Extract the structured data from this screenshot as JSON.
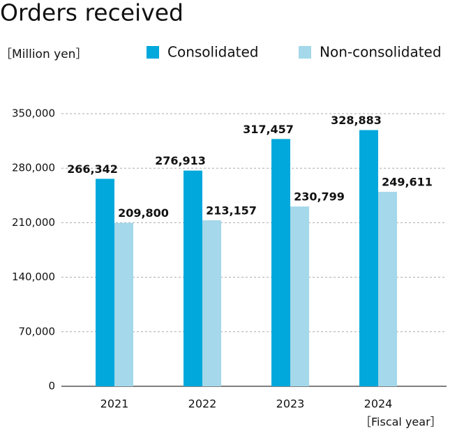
{
  "chart_data": {
    "type": "bar",
    "title": "Orders received",
    "y_axis_label": "［Million yen］",
    "x_axis_label": "［Fiscal year］",
    "categories": [
      "2021",
      "2022",
      "2023",
      "2024"
    ],
    "series": [
      {
        "name": "Consolidated",
        "color": "#00a8dc",
        "values": [
          266342,
          276913,
          317457,
          328883
        ],
        "value_labels": [
          "266,342",
          "276,913",
          "317,457",
          "328,883"
        ]
      },
      {
        "name": "Non-consolidated",
        "color": "#a4d8ea",
        "values": [
          209800,
          213157,
          230799,
          249611
        ],
        "value_labels": [
          "209,800",
          "213,157",
          "230,799",
          "249,611"
        ]
      }
    ],
    "ylim": [
      0,
      350000
    ],
    "yticks": [
      0,
      {
        "value": 70000,
        "label": "70,000"
      },
      {
        "value": 140000,
        "label": "140,000"
      },
      {
        "value": 210000,
        "label": "210,000"
      },
      {
        "value": 280000,
        "label": "280,000"
      },
      {
        "value": 350000,
        "label": "350,000"
      }
    ],
    "grid": true
  }
}
